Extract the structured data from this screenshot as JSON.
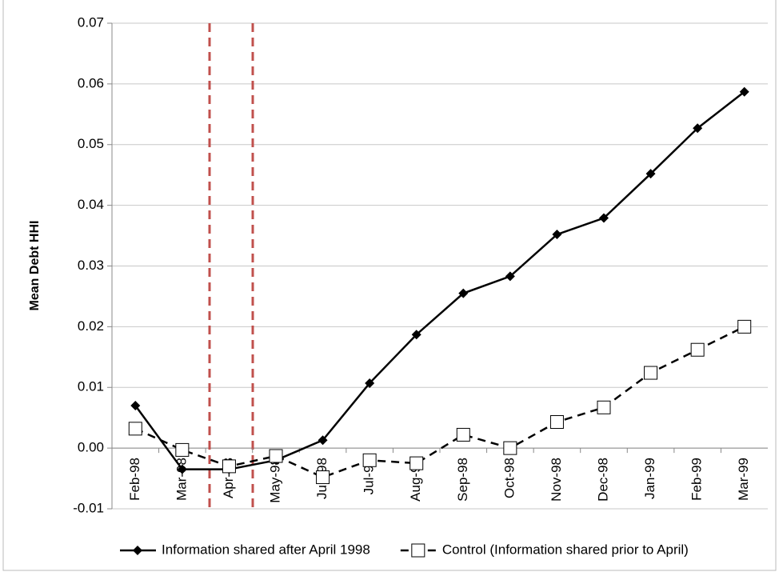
{
  "chart_data": {
    "type": "line",
    "y_label": "Mean Debt HHI",
    "categories": [
      "Feb-98",
      "Mar-98",
      "Apr-98",
      "May-98",
      "Jun-98",
      "Jul-98",
      "Aug-98",
      "Sep-98",
      "Oct-98",
      "Nov-98",
      "Dec-98",
      "Jan-99",
      "Feb-99",
      "Mar-99"
    ],
    "series": [
      {
        "name": "Information shared after April 1998",
        "color": "#000000",
        "line_style": "solid",
        "marker": "diamond",
        "values": [
          0.007,
          -0.0035,
          -0.0035,
          -0.002,
          0.0013,
          0.0107,
          0.0187,
          0.0255,
          0.0283,
          0.0352,
          0.0379,
          0.0452,
          0.0527,
          0.0587
        ]
      },
      {
        "name": "Control (Information shared prior to April)",
        "color": "#000000",
        "line_style": "dashed",
        "marker": "square",
        "values": [
          0.0032,
          -0.0003,
          -0.003,
          -0.0013,
          -0.0048,
          -0.002,
          -0.0025,
          0.0022,
          0.0,
          0.0043,
          0.0067,
          0.0124,
          0.0162,
          0.02
        ]
      }
    ],
    "ylim": [
      -0.01,
      0.07
    ],
    "yticks": [
      -0.01,
      {
        "value": 0,
        "label": "0.00"
      },
      0.01,
      0.02,
      0.03,
      0.04,
      0.05,
      0.06,
      0.07
    ],
    "grid": true
  }
}
